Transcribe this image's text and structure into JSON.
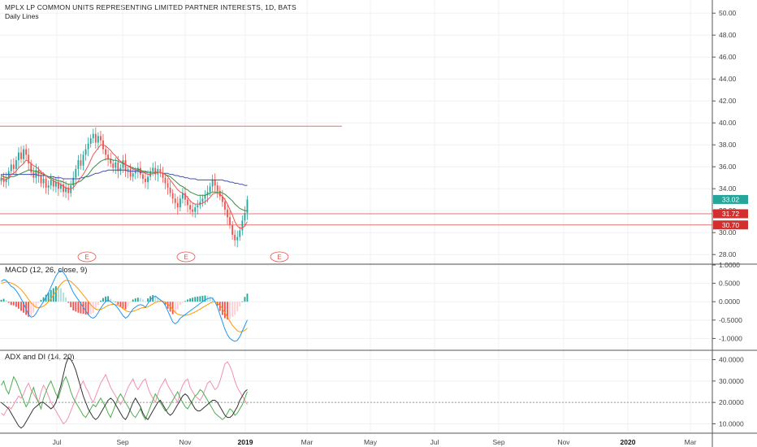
{
  "header": {
    "title": "MPLX LP COMMON UNITS REPRESENTING LIMITED PARTNER INTERESTS, 1D, BATS",
    "subtitle": "Daily Lines"
  },
  "colors": {
    "up": "#26a69a",
    "down": "#ef5350",
    "ma_fast": "#ef5350",
    "ma_mid": "#388e3c",
    "ma_slow": "#3f51b5",
    "hline": "#e57373",
    "macd_line": "#2196f3",
    "signal_line": "#ff9800",
    "adx_line": "#333333",
    "plus_di": "#4caf50",
    "minus_di": "#f48fb1",
    "badge_green": "#26a69a",
    "badge_red": "#d32f2f"
  },
  "chart_data": [
    {
      "type": "candlestick",
      "title": "MPLX LP COMMON UNITS REPRESENTING LIMITED PARTNER INTERESTS, 1D, BATS",
      "subtitle": "Daily Lines",
      "x_tick_labels": [
        "Jul",
        "Sep",
        "Nov",
        "2019",
        "Mar",
        "May",
        "Jul",
        "Sep",
        "Nov",
        "2020",
        "Mar"
      ],
      "y_tick_labels": [
        "50.00",
        "48.00",
        "46.00",
        "44.00",
        "42.00",
        "40.00",
        "38.00",
        "36.00",
        "34.00",
        "32.00",
        "30.00",
        "28.00"
      ],
      "ylim": [
        27.2,
        51.2
      ],
      "grid": true,
      "price_badges": [
        {
          "value": 33.02,
          "label": "33.02",
          "color": "badge_green"
        },
        {
          "value": 31.72,
          "label": "31.72",
          "color": "badge_red"
        },
        {
          "value": 30.7,
          "label": "30.70",
          "color": "badge_red"
        }
      ],
      "horizontal_lines": [
        {
          "value": 39.7,
          "extends": "to Apr 2019"
        },
        {
          "value": 31.72,
          "extends": "full"
        },
        {
          "value": 30.7,
          "extends": "full"
        }
      ],
      "earnings_markers": [
        {
          "label": "E",
          "date": "Aug 2018"
        },
        {
          "label": "E",
          "date": "Nov 2018"
        },
        {
          "label": "E",
          "date": "Feb 2019"
        }
      ],
      "closes": [
        35.0,
        34.6,
        34.9,
        35.6,
        36.2,
        35.8,
        36.6,
        37.3,
        36.7,
        37.6,
        37.1,
        36.3,
        35.5,
        35.0,
        35.7,
        35.2,
        34.5,
        34.9,
        34.1,
        34.3,
        34.8,
        34.2,
        34.6,
        34.0,
        34.4,
        33.7,
        34.1,
        33.6,
        34.3,
        35.0,
        35.8,
        36.6,
        36.1,
        37.1,
        37.6,
        38.1,
        38.6,
        39.0,
        38.2,
        38.8,
        38.4,
        37.6,
        37.1,
        36.7,
        36.3,
        35.9,
        36.4,
        35.6,
        35.9,
        36.6,
        35.6,
        35.8,
        35.1,
        35.4,
        35.6,
        35.9,
        35.3,
        34.9,
        34.6,
        35.1,
        35.6,
        35.9,
        35.3,
        35.8,
        35.4,
        35.0,
        34.5,
        34.1,
        33.6,
        33.1,
        32.7,
        32.3,
        33.1,
        33.6,
        33.0,
        32.5,
        32.1,
        31.9,
        32.3,
        32.5,
        32.8,
        33.1,
        33.4,
        33.7,
        34.2,
        34.8,
        34.3,
        33.8,
        33.3,
        32.8,
        32.1,
        31.4,
        30.7,
        29.8,
        29.3,
        29.6,
        30.2,
        31.1,
        31.8,
        33.02
      ],
      "ma_fast": [
        35.0,
        34.8,
        34.8,
        35.0,
        35.3,
        35.4,
        35.6,
        35.9,
        36.1,
        36.3,
        36.6,
        36.5,
        36.3,
        36.1,
        36.0,
        35.8,
        35.5,
        35.4,
        35.2,
        35.0,
        34.9,
        34.7,
        34.6,
        34.5,
        34.4,
        34.2,
        34.1,
        34.0,
        34.0,
        34.1,
        34.4,
        34.7,
        35.0,
        35.3,
        35.7,
        36.1,
        36.6,
        37.1,
        37.4,
        37.7,
        38.0,
        38.0,
        37.9,
        37.7,
        37.5,
        37.2,
        37.0,
        36.7,
        36.5,
        36.4,
        36.2,
        36.1,
        35.9,
        35.8,
        35.7,
        35.7,
        35.6,
        35.5,
        35.4,
        35.3,
        35.3,
        35.4,
        35.4,
        35.5,
        35.5,
        35.4,
        35.3,
        35.1,
        34.8,
        34.5,
        34.2,
        33.9,
        33.7,
        33.6,
        33.4,
        33.2,
        32.9,
        32.7,
        32.6,
        32.6,
        32.6,
        32.7,
        32.8,
        33.0,
        33.2,
        33.5,
        33.6,
        33.6,
        33.5,
        33.3,
        33.0,
        32.6,
        32.1,
        31.6,
        31.0,
        30.6,
        30.4,
        30.4,
        30.6,
        31.0
      ],
      "ma_mid": [
        35.2,
        35.1,
        35.0,
        35.0,
        35.1,
        35.1,
        35.2,
        35.3,
        35.4,
        35.5,
        35.6,
        35.7,
        35.7,
        35.6,
        35.6,
        35.5,
        35.4,
        35.3,
        35.2,
        35.1,
        35.0,
        34.9,
        34.8,
        34.7,
        34.7,
        34.6,
        34.5,
        34.4,
        34.4,
        34.4,
        34.5,
        34.6,
        34.7,
        34.9,
        35.1,
        35.3,
        35.6,
        35.9,
        36.1,
        36.3,
        36.5,
        36.6,
        36.7,
        36.7,
        36.7,
        36.6,
        36.6,
        36.5,
        36.4,
        36.3,
        36.2,
        36.1,
        36.0,
        35.9,
        35.8,
        35.8,
        35.7,
        35.6,
        35.6,
        35.5,
        35.5,
        35.5,
        35.5,
        35.5,
        35.5,
        35.4,
        35.3,
        35.2,
        35.1,
        34.9,
        34.7,
        34.5,
        34.3,
        34.2,
        34.0,
        33.9,
        33.7,
        33.6,
        33.5,
        33.4,
        33.4,
        33.4,
        33.4,
        33.5,
        33.6,
        33.7,
        33.7,
        33.7,
        33.7,
        33.6,
        33.5,
        33.3,
        33.1,
        32.9,
        32.6,
        32.4,
        32.2,
        32.1,
        32.0,
        32.0
      ],
      "ma_slow": [
        35.3,
        35.3,
        35.3,
        35.3,
        35.3,
        35.3,
        35.3,
        35.3,
        35.3,
        35.3,
        35.3,
        35.3,
        35.3,
        35.3,
        35.3,
        35.2,
        35.2,
        35.2,
        35.2,
        35.1,
        35.1,
        35.1,
        35.0,
        35.0,
        35.0,
        34.9,
        34.9,
        34.9,
        34.9,
        34.9,
        34.9,
        34.9,
        35.0,
        35.0,
        35.1,
        35.1,
        35.2,
        35.3,
        35.4,
        35.4,
        35.5,
        35.6,
        35.6,
        35.7,
        35.7,
        35.7,
        35.7,
        35.7,
        35.7,
        35.7,
        35.7,
        35.6,
        35.6,
        35.6,
        35.6,
        35.6,
        35.5,
        35.5,
        35.5,
        35.5,
        35.5,
        35.5,
        35.5,
        35.5,
        35.5,
        35.4,
        35.4,
        35.4,
        35.3,
        35.3,
        35.2,
        35.2,
        35.1,
        35.1,
        35.0,
        35.0,
        34.9,
        34.9,
        34.9,
        34.8,
        34.8,
        34.8,
        34.8,
        34.8,
        34.8,
        34.8,
        34.8,
        34.8,
        34.8,
        34.8,
        34.7,
        34.7,
        34.6,
        34.6,
        34.5,
        34.5,
        34.4,
        34.4,
        34.3,
        34.3
      ]
    },
    {
      "type": "histogram+line",
      "title": "MACD (12, 26, close, 9)",
      "y_tick_labels": [
        "1.0000",
        "0.5000",
        "0.0000",
        "-0.5000",
        "-1.0000"
      ],
      "ylim": [
        -1.3,
        1.0
      ],
      "macd": [
        0.55,
        0.6,
        0.58,
        0.5,
        0.42,
        0.38,
        0.3,
        0.2,
        0.08,
        -0.05,
        -0.2,
        -0.35,
        -0.42,
        -0.4,
        -0.32,
        -0.2,
        -0.1,
        0.0,
        0.12,
        0.25,
        0.4,
        0.55,
        0.7,
        0.8,
        0.85,
        0.8,
        0.7,
        0.55,
        0.4,
        0.25,
        0.15,
        0.05,
        -0.05,
        -0.15,
        -0.25,
        -0.35,
        -0.42,
        -0.45,
        -0.4,
        -0.3,
        -0.18,
        -0.08,
        0.0,
        0.05,
        0.0,
        -0.05,
        -0.1,
        -0.18,
        -0.28,
        -0.38,
        -0.45,
        -0.4,
        -0.3,
        -0.2,
        -0.15,
        -0.1,
        -0.08,
        -0.1,
        -0.15,
        -0.05,
        0.05,
        0.12,
        0.15,
        0.1,
        0.05,
        0.0,
        -0.1,
        -0.25,
        -0.4,
        -0.55,
        -0.6,
        -0.55,
        -0.45,
        -0.4,
        -0.35,
        -0.3,
        -0.25,
        -0.2,
        -0.15,
        -0.1,
        -0.05,
        0.0,
        0.05,
        0.08,
        0.1,
        0.1,
        0.0,
        -0.15,
        -0.35,
        -0.55,
        -0.75,
        -0.9,
        -1.0,
        -1.05,
        -1.08,
        -1.05,
        -0.95,
        -0.8,
        -0.65,
        -0.5
      ],
      "signal": [
        0.5,
        0.52,
        0.54,
        0.53,
        0.51,
        0.48,
        0.44,
        0.39,
        0.33,
        0.25,
        0.16,
        0.06,
        -0.03,
        -0.1,
        -0.15,
        -0.16,
        -0.15,
        -0.12,
        -0.07,
        0.0,
        0.08,
        0.18,
        0.28,
        0.39,
        0.48,
        0.55,
        0.58,
        0.58,
        0.55,
        0.49,
        0.42,
        0.35,
        0.27,
        0.18,
        0.1,
        0.01,
        -0.08,
        -0.15,
        -0.2,
        -0.22,
        -0.21,
        -0.18,
        -0.14,
        -0.1,
        -0.08,
        -0.07,
        -0.08,
        -0.1,
        -0.14,
        -0.18,
        -0.24,
        -0.27,
        -0.28,
        -0.26,
        -0.24,
        -0.21,
        -0.18,
        -0.16,
        -0.16,
        -0.14,
        -0.1,
        -0.06,
        -0.02,
        0.0,
        0.01,
        0.01,
        -0.01,
        -0.06,
        -0.13,
        -0.21,
        -0.29,
        -0.34,
        -0.36,
        -0.37,
        -0.37,
        -0.36,
        -0.34,
        -0.31,
        -0.28,
        -0.24,
        -0.2,
        -0.16,
        -0.12,
        -0.08,
        -0.04,
        -0.01,
        -0.01,
        -0.04,
        -0.1,
        -0.19,
        -0.3,
        -0.42,
        -0.53,
        -0.64,
        -0.72,
        -0.79,
        -0.82,
        -0.81,
        -0.78,
        -0.72
      ]
    },
    {
      "type": "line",
      "title": "ADX and DI (14, 20)",
      "y_tick_labels": [
        "40.0000",
        "30.0000",
        "20.0000",
        "10.0000"
      ],
      "ylim": [
        6,
        44
      ],
      "reference_line": 20,
      "adx": [
        20,
        19,
        18,
        17,
        15,
        13,
        11,
        9,
        8,
        9,
        11,
        13,
        15,
        17,
        18,
        19,
        20,
        20,
        19,
        18,
        17,
        18,
        20,
        24,
        28,
        33,
        38,
        41,
        40,
        38,
        35,
        31,
        27,
        23,
        20,
        17,
        15,
        13,
        12,
        13,
        15,
        17,
        19,
        21,
        22,
        21,
        19,
        17,
        15,
        13,
        12,
        14,
        17,
        20,
        22,
        20,
        18,
        15,
        13,
        12,
        14,
        16,
        18,
        20,
        21,
        19,
        17,
        15,
        14,
        15,
        17,
        19,
        21,
        23,
        24,
        23,
        21,
        19,
        17,
        16,
        16,
        17,
        18,
        19,
        20,
        21,
        21,
        20,
        18,
        16,
        14,
        13,
        13,
        14,
        16,
        18,
        21,
        23,
        25,
        26
      ],
      "plus_di": [
        28,
        30,
        26,
        24,
        28,
        32,
        30,
        27,
        24,
        21,
        18,
        20,
        24,
        27,
        23,
        20,
        17,
        22,
        25,
        28,
        30,
        27,
        24,
        22,
        26,
        30,
        32,
        29,
        25,
        22,
        20,
        18,
        16,
        14,
        13,
        15,
        17,
        19,
        18,
        20,
        22,
        20,
        18,
        15,
        13,
        16,
        19,
        22,
        24,
        22,
        20,
        18,
        16,
        14,
        13,
        15,
        17,
        14,
        12,
        15,
        18,
        21,
        24,
        22,
        20,
        18,
        16,
        17,
        19,
        21,
        23,
        25,
        22,
        20,
        18,
        17,
        19,
        21,
        23,
        24,
        26,
        25,
        23,
        21,
        19,
        17,
        15,
        14,
        13,
        12,
        13,
        15,
        17,
        16,
        14,
        15,
        17,
        19,
        22,
        25
      ],
      "minus_di": [
        15,
        14,
        16,
        18,
        17,
        19,
        21,
        23,
        22,
        24,
        27,
        29,
        26,
        24,
        22,
        20,
        25,
        28,
        26,
        23,
        20,
        18,
        16,
        14,
        12,
        10,
        11,
        13,
        16,
        19,
        22,
        25,
        28,
        30,
        27,
        25,
        22,
        20,
        23,
        26,
        29,
        31,
        33,
        30,
        27,
        25,
        23,
        21,
        19,
        21,
        24,
        27,
        29,
        31,
        28,
        26,
        28,
        30,
        31,
        27,
        24,
        22,
        20,
        24,
        27,
        29,
        31,
        28,
        26,
        24,
        22,
        20,
        25,
        28,
        30,
        31,
        27,
        25,
        23,
        22,
        21,
        23,
        26,
        29,
        30,
        28,
        26,
        27,
        30,
        34,
        38,
        39,
        37,
        34,
        30,
        27,
        25,
        23,
        21,
        19
      ]
    }
  ]
}
